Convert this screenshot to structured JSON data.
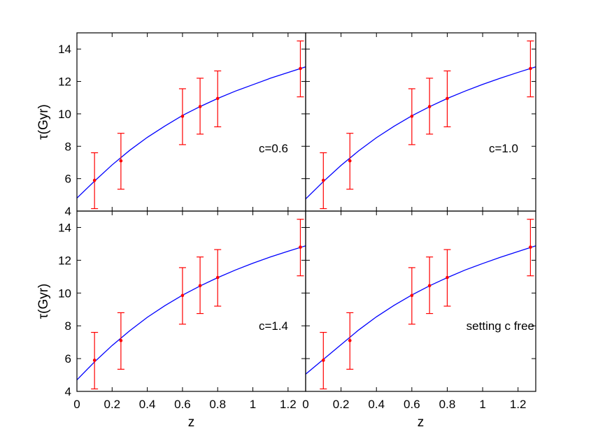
{
  "chart_data": {
    "type": "scatter",
    "layout": "2x2 shared axes",
    "x": [
      0.1,
      0.25,
      0.6,
      0.7,
      0.8,
      1.27
    ],
    "y": [
      5.9,
      7.1,
      9.85,
      10.45,
      10.95,
      12.8
    ],
    "yerr_low": [
      4.15,
      5.35,
      8.1,
      8.75,
      9.2,
      11.05
    ],
    "yerr_high": [
      7.6,
      8.8,
      11.55,
      12.2,
      12.65,
      14.5
    ],
    "xlim": [
      0,
      1.3
    ],
    "ylim": [
      4,
      15
    ],
    "xticks": [
      "0",
      "0.2",
      "0.4",
      "0.6",
      "0.8",
      "1",
      "1.2"
    ],
    "xtick_values": [
      0,
      0.2,
      0.4,
      0.6,
      0.8,
      1.0,
      1.2
    ],
    "yticks": [
      "4",
      "6",
      "8",
      "10",
      "12",
      "14"
    ],
    "ytick_values": [
      4,
      6,
      8,
      10,
      12,
      14
    ],
    "xlabel": "z",
    "ylabel": "τ(Gyr)",
    "marker_color": "#ff0000",
    "line_color": "#0000ff",
    "panels": [
      {
        "annotation": "c=0.6",
        "curve_x": [
          0,
          0.1,
          0.2,
          0.3,
          0.4,
          0.5,
          0.6,
          0.7,
          0.8,
          0.9,
          1.0,
          1.1,
          1.2,
          1.3
        ],
        "curve_y": [
          4.8,
          5.85,
          6.85,
          7.75,
          8.55,
          9.25,
          9.9,
          10.45,
          10.95,
          11.4,
          11.8,
          12.2,
          12.55,
          12.9
        ]
      },
      {
        "annotation": "c=1.0",
        "curve_x": [
          0,
          0.1,
          0.2,
          0.3,
          0.4,
          0.5,
          0.6,
          0.7,
          0.8,
          0.9,
          1.0,
          1.1,
          1.2,
          1.3
        ],
        "curve_y": [
          4.75,
          5.82,
          6.82,
          7.72,
          8.53,
          9.24,
          9.88,
          10.44,
          10.95,
          11.4,
          11.82,
          12.2,
          12.56,
          12.9
        ]
      },
      {
        "annotation": "c=1.4",
        "curve_x": [
          0,
          0.1,
          0.2,
          0.3,
          0.4,
          0.5,
          0.6,
          0.7,
          0.8,
          0.9,
          1.0,
          1.1,
          1.2,
          1.3
        ],
        "curve_y": [
          4.7,
          5.8,
          6.8,
          7.7,
          8.52,
          9.23,
          9.87,
          10.43,
          10.94,
          11.4,
          11.82,
          12.2,
          12.55,
          12.88
        ]
      },
      {
        "annotation": "setting c free",
        "curve_x": [
          0,
          0.1,
          0.2,
          0.3,
          0.4,
          0.5,
          0.6,
          0.7,
          0.8,
          0.9,
          1.0,
          1.1,
          1.2,
          1.3
        ],
        "curve_y": [
          5.05,
          5.95,
          6.85,
          7.75,
          8.55,
          9.25,
          9.88,
          10.44,
          10.94,
          11.4,
          11.8,
          12.18,
          12.53,
          12.88
        ]
      }
    ]
  }
}
